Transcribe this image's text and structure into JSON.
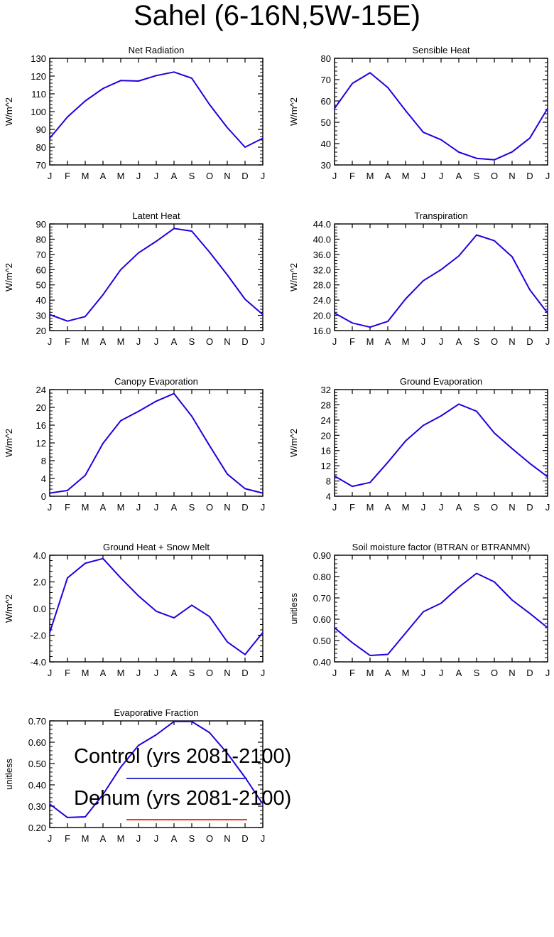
{
  "title": "Sahel (6-16N,5W-15E)",
  "legend": [
    {
      "label": "Control (yrs 2081-2100)",
      "color": "#3333cc"
    },
    {
      "label": "Dehum (yrs 2081-2100)",
      "color": "#e63c2d"
    }
  ],
  "line_color": "#2200dd",
  "chart_data": [
    {
      "type": "line",
      "title": "Net Radiation",
      "ylabel": "W/m^2",
      "categories": [
        "J",
        "F",
        "M",
        "A",
        "M",
        "J",
        "J",
        "A",
        "S",
        "O",
        "N",
        "D",
        "J"
      ],
      "ylim": [
        70,
        130
      ],
      "ytick_step": 10,
      "ytick_decimals": 0,
      "series": [
        {
          "name": "Control (yrs 2081-2100)",
          "values": [
            85,
            97,
            106,
            113,
            117.5,
            117.2,
            120.3,
            122.3,
            118.8,
            104,
            91,
            80,
            85
          ]
        }
      ]
    },
    {
      "type": "line",
      "title": "Sensible Heat",
      "ylabel": "W/m^2",
      "categories": [
        "J",
        "F",
        "M",
        "A",
        "M",
        "J",
        "J",
        "A",
        "S",
        "O",
        "N",
        "D",
        "J"
      ],
      "ylim": [
        30,
        80
      ],
      "ytick_step": 10,
      "ytick_decimals": 0,
      "series": [
        {
          "name": "Control (yrs 2081-2100)",
          "values": [
            56.5,
            68.2,
            73.2,
            66.3,
            55.5,
            45.3,
            41.8,
            36,
            33.1,
            32.4,
            36.1,
            42.6,
            56.5
          ]
        }
      ]
    },
    {
      "type": "line",
      "title": "Latent Heat",
      "ylabel": "W/m^2",
      "categories": [
        "J",
        "F",
        "M",
        "A",
        "M",
        "J",
        "J",
        "A",
        "S",
        "O",
        "N",
        "D",
        "J"
      ],
      "ylim": [
        20,
        90
      ],
      "ytick_step": 10,
      "ytick_decimals": 0,
      "series": [
        {
          "name": "Control (yrs 2081-2100)",
          "values": [
            30.5,
            26.2,
            29.2,
            43.5,
            60,
            71,
            78.6,
            87,
            85.3,
            71.5,
            56.6,
            40.6,
            30.5
          ]
        }
      ]
    },
    {
      "type": "line",
      "title": "Transpiration",
      "ylabel": "W/m^2",
      "categories": [
        "J",
        "F",
        "M",
        "A",
        "M",
        "J",
        "J",
        "A",
        "S",
        "O",
        "N",
        "D",
        "J"
      ],
      "ylim": [
        16,
        44
      ],
      "ytick_step": 4,
      "ytick_decimals": 1,
      "series": [
        {
          "name": "Control (yrs 2081-2100)",
          "values": [
            20.6,
            18,
            16.9,
            18.4,
            24.3,
            29.1,
            32,
            35.6,
            41.1,
            39.6,
            35.4,
            26.7,
            20.6
          ]
        }
      ]
    },
    {
      "type": "line",
      "title": "Canopy Evaporation",
      "ylabel": "W/m^2",
      "categories": [
        "J",
        "F",
        "M",
        "A",
        "M",
        "J",
        "J",
        "A",
        "S",
        "O",
        "N",
        "D",
        "J"
      ],
      "ylim": [
        0,
        24
      ],
      "ytick_step": 4,
      "ytick_decimals": 0,
      "series": [
        {
          "name": "Control (yrs 2081-2100)",
          "values": [
            0.7,
            1.3,
            4.7,
            11.9,
            17,
            19.1,
            21.4,
            23.1,
            18,
            11.4,
            5,
            1.7,
            0.7
          ]
        }
      ]
    },
    {
      "type": "line",
      "title": "Ground Evaporation",
      "ylabel": "W/m^2",
      "categories": [
        "J",
        "F",
        "M",
        "A",
        "M",
        "J",
        "J",
        "A",
        "S",
        "O",
        "N",
        "D",
        "J"
      ],
      "ylim": [
        4,
        32
      ],
      "ytick_step": 4,
      "ytick_decimals": 0,
      "series": [
        {
          "name": "Control (yrs 2081-2100)",
          "values": [
            9.3,
            6.6,
            7.6,
            12.9,
            18.5,
            22.6,
            25.1,
            28.2,
            26.3,
            20.6,
            16.5,
            12.6,
            9.1
          ]
        }
      ]
    },
    {
      "type": "line",
      "title": "Ground Heat + Snow Melt",
      "ylabel": "W/m^2",
      "categories": [
        "J",
        "F",
        "M",
        "A",
        "M",
        "J",
        "J",
        "A",
        "S",
        "O",
        "N",
        "D",
        "J"
      ],
      "ylim": [
        -4,
        4
      ],
      "ytick_step": 2,
      "ytick_decimals": 1,
      "series": [
        {
          "name": "Control (yrs 2081-2100)",
          "values": [
            -1.8,
            2.3,
            3.4,
            3.75,
            2.3,
            0.95,
            -0.2,
            -0.7,
            0.25,
            -0.6,
            -2.5,
            -3.45,
            -1.8
          ]
        }
      ]
    },
    {
      "type": "line",
      "title": "Soil moisture factor (BTRAN or BTRANMN)",
      "ylabel": "unitless",
      "categories": [
        "J",
        "F",
        "M",
        "A",
        "M",
        "J",
        "J",
        "A",
        "S",
        "O",
        "N",
        "D",
        "J"
      ],
      "ylim": [
        0.4,
        0.9
      ],
      "ytick_step": 0.1,
      "ytick_decimals": 2,
      "series": [
        {
          "name": "Control (yrs 2081-2100)",
          "values": [
            0.56,
            0.49,
            0.43,
            0.435,
            0.535,
            0.635,
            0.675,
            0.75,
            0.815,
            0.775,
            0.69,
            0.627,
            0.56
          ]
        }
      ]
    },
    {
      "type": "line",
      "title": "Evaporative Fraction",
      "ylabel": "unitless",
      "categories": [
        "J",
        "F",
        "M",
        "A",
        "M",
        "J",
        "J",
        "A",
        "S",
        "O",
        "N",
        "D",
        "J"
      ],
      "ylim": [
        0.2,
        0.7
      ],
      "ytick_step": 0.1,
      "ytick_decimals": 2,
      "series": [
        {
          "name": "Control (yrs 2081-2100)",
          "values": [
            0.31,
            0.247,
            0.25,
            0.355,
            0.483,
            0.585,
            0.635,
            0.697,
            0.697,
            0.645,
            0.548,
            0.435,
            0.31
          ]
        }
      ]
    }
  ]
}
